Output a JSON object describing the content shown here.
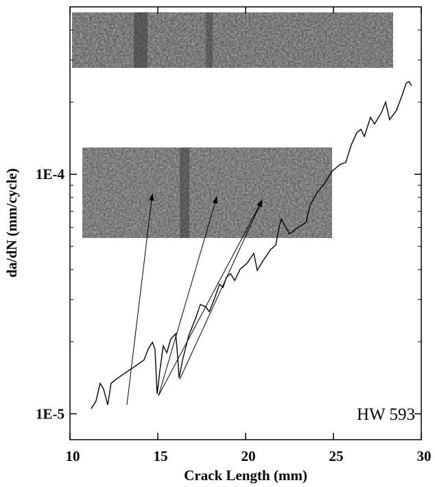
{
  "chart_data": {
    "type": "line",
    "xlabel": "Crack Length (mm)",
    "ylabel": "da/dN (mm/cycle)",
    "annotation": "HW 593",
    "xlim": [
      10,
      30
    ],
    "xticks": [
      10,
      15,
      20,
      25,
      30
    ],
    "ylim": [
      7.8e-06,
      0.0005
    ],
    "log_y": true,
    "yticks": [
      {
        "value": 1e-05,
        "label": "1E-5"
      },
      {
        "value": 0.0001,
        "label": "1E-4"
      }
    ],
    "yticks_minor": [
      2e-05,
      3e-05,
      4e-05,
      5e-05,
      6e-05,
      7e-05,
      8e-05,
      9e-05,
      0.0002,
      0.0003,
      0.0004
    ],
    "series": [
      {
        "color": "#000000",
        "x": [
          11.21,
          11.48,
          11.72,
          11.91,
          12.15,
          12.34,
          12.66,
          13.13,
          13.71,
          14.22,
          14.45,
          14.69,
          14.84,
          14.96,
          15.12,
          15.31,
          15.51,
          15.74,
          16.02,
          16.13,
          16.21,
          16.41,
          16.76,
          17.15,
          17.42,
          17.73,
          17.93,
          18.2,
          18.52,
          18.71,
          18.91,
          19.14,
          19.38,
          19.69,
          20.08,
          20.47,
          20.66,
          20.94,
          21.41,
          21.72,
          21.88,
          22.03,
          22.23,
          22.5,
          23.01,
          23.44,
          23.67,
          24.06,
          24.45,
          24.92,
          25.39,
          25.7,
          26.02,
          26.33,
          26.56,
          26.76,
          27.11,
          27.34,
          27.73,
          27.97,
          28.2,
          28.59,
          28.91,
          29.14,
          29.3,
          29.45
        ],
        "values": [
          1.05e-05,
          1.13e-05,
          1.34e-05,
          1.27e-05,
          1.09e-05,
          1.34e-05,
          1.4e-05,
          1.48e-05,
          1.58e-05,
          1.68e-05,
          1.86e-05,
          1.99e-05,
          1.86e-05,
          1.21e-05,
          1.52e-05,
          1.92e-05,
          1.8e-05,
          2.05e-05,
          2.16e-05,
          1.74e-05,
          1.41e-05,
          1.68e-05,
          2.12e-05,
          2.5e-05,
          2.86e-05,
          2.8e-05,
          2.67e-05,
          2.99e-05,
          3.48e-05,
          3.37e-05,
          3.72e-05,
          3.85e-05,
          3.6e-05,
          4.02e-05,
          4.25e-05,
          4.68e-05,
          3.97e-05,
          4.3e-05,
          4.84e-05,
          5.07e-05,
          5.9e-05,
          6.52e-05,
          6.1e-05,
          5.64e-05,
          6.02e-05,
          6.3e-05,
          7.43e-05,
          8.37e-05,
          9.06e-05,
          0.000103,
          0.00011,
          0.000112,
          0.000133,
          0.000149,
          0.000154,
          0.000144,
          0.000173,
          0.000162,
          0.000181,
          0.0002,
          0.000169,
          0.000185,
          0.000214,
          0.00024,
          0.000244,
          0.000234
        ]
      }
    ]
  }
}
